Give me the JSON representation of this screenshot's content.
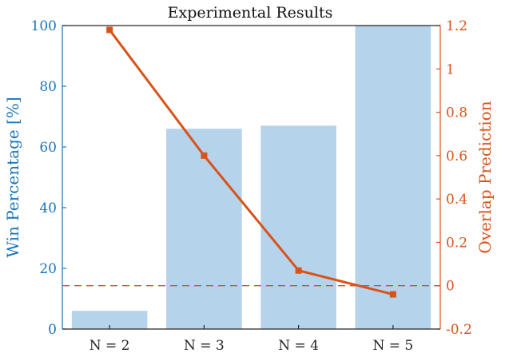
{
  "chart_data": {
    "type": "bar",
    "title": "Experimental Results",
    "categories": [
      "N = 2",
      "N = 3",
      "N = 4",
      "N = 5"
    ],
    "left_axis": {
      "label": "Win Percentage [%]",
      "range": [
        0,
        100
      ],
      "ticks": [
        "0",
        "20",
        "40",
        "60",
        "80",
        "100"
      ],
      "color": "#1a75b8"
    },
    "right_axis": {
      "label": "Overlap Prediction",
      "range": [
        -0.2,
        1.2
      ],
      "ticks": [
        "-0.2",
        "0",
        "0.2",
        "0.4",
        "0.6",
        "0.8",
        "1",
        "1.2"
      ],
      "color": "#d95319"
    },
    "series": [
      {
        "type": "bar",
        "axis": "left",
        "values": [
          6,
          66,
          67,
          100
        ],
        "color": "#b5d3ea"
      },
      {
        "type": "line",
        "axis": "right",
        "values": [
          1.18,
          0.6,
          0.07,
          -0.04
        ],
        "color": "#d95319",
        "marker": "square"
      }
    ],
    "reference_line": {
      "axis": "right",
      "value": 0,
      "style": "dashed",
      "color": "#d95319"
    },
    "grid": false
  }
}
